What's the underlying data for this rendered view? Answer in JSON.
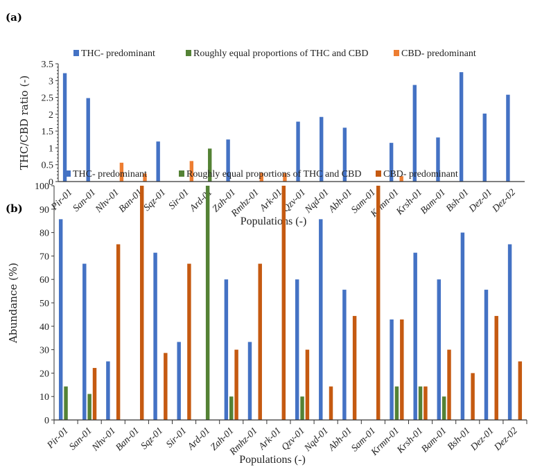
{
  "colors": {
    "thc": "#4472C4",
    "equal": "#548235",
    "cbd_a": "#ED7D31",
    "cbd_b": "#C55A11"
  },
  "chart_data": [
    {
      "panel_label": "(a)",
      "type": "bar",
      "xlabel": "Populations (-)",
      "ylabel": "THC/CBD ratio (-)",
      "ylim": [
        0,
        3.5
      ],
      "yticks": [
        0,
        0.5,
        1,
        1.5,
        2,
        2.5,
        3,
        3.5
      ],
      "ytick_labels": [
        "0",
        "0.5",
        "1",
        "1.5",
        "2",
        "2.5",
        "3",
        "3.5"
      ],
      "legend_placement": "top",
      "categories": [
        "Pir-01",
        "San-01",
        "Nhv-01",
        "Ban-01",
        "Sqz-01",
        "Sir-01",
        "Ard-01",
        "Zah-01",
        "Rmhz-01",
        "Ark-01",
        "Qzv-01",
        "Nqd-01",
        "Abh-01",
        "Sam-01",
        "Krmn-01",
        "Krsh-01",
        "Bam-01",
        "Bsh-01",
        "Dez-01",
        "Dez-02"
      ],
      "series": [
        {
          "name": "THC- predominant",
          "values": [
            3.22,
            2.48,
            0,
            0,
            1.19,
            0,
            0,
            1.25,
            0,
            0,
            1.78,
            1.92,
            1.6,
            0,
            1.15,
            2.87,
            1.31,
            3.25,
            2.02,
            2.58
          ]
        },
        {
          "name": "Roughly equal proportions of THC and CBD",
          "values": [
            0,
            0,
            0,
            0,
            0,
            0,
            0.98,
            0,
            0,
            0,
            0,
            0,
            0,
            0,
            0,
            0,
            0,
            0,
            0,
            0
          ]
        },
        {
          "name": "CBD- predominant",
          "values": [
            0,
            0,
            0.56,
            0.24,
            0,
            0.61,
            0,
            0,
            0.26,
            0.25,
            0,
            0,
            0,
            0,
            0.16,
            0,
            0,
            0,
            0,
            0
          ]
        }
      ]
    },
    {
      "panel_label": "(b)",
      "type": "bar",
      "xlabel": "Populations (-)",
      "ylabel": "Abundance (%)",
      "ylim": [
        0,
        100
      ],
      "yticks": [
        0,
        10,
        20,
        30,
        40,
        50,
        60,
        70,
        80,
        90,
        100
      ],
      "ytick_labels": [
        "0",
        "10",
        "20",
        "30",
        "40",
        "50",
        "60",
        "70",
        "80",
        "90",
        "100"
      ],
      "legend_placement": "top",
      "categories": [
        "Pir-01",
        "San-01",
        "Nhv-01",
        "Ban-01",
        "Sqz-01",
        "Sir-01",
        "Ard-01",
        "Zah-01",
        "Rmhz-01",
        "Ark-01",
        "Qzv-01",
        "Nqd-01",
        "Abh-01",
        "Sam-01",
        "Krmn-01",
        "Krsh-01",
        "Bam-01",
        "Bsh-01",
        "Dez-01",
        "Dez-02"
      ],
      "series": [
        {
          "name": "THC- predominant",
          "values": [
            85.7,
            66.7,
            25,
            0,
            71.4,
            33.3,
            0,
            60,
            33.3,
            0,
            60,
            85.7,
            55.6,
            0,
            42.9,
            71.4,
            60,
            80,
            55.6,
            75
          ]
        },
        {
          "name": "Roughly equal proportions of THC and CBD",
          "values": [
            14.3,
            11.1,
            0,
            0,
            0,
            0,
            100,
            10,
            0,
            0,
            10,
            0,
            0,
            0,
            14.3,
            14.3,
            10,
            0,
            0,
            0
          ]
        },
        {
          "name": "CBD- predominant",
          "values": [
            0,
            22.2,
            75,
            100,
            28.6,
            66.7,
            0,
            30,
            66.7,
            100,
            30,
            14.3,
            44.4,
            100,
            42.9,
            14.3,
            30,
            20,
            44.4,
            25
          ]
        }
      ]
    }
  ]
}
